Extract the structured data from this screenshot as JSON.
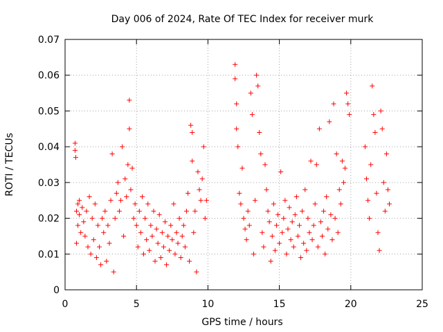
{
  "chart_data": {
    "type": "scatter",
    "title": "Day 006 of 2024, Rate Of TEC Index for receiver murk",
    "xlabel": "GPS time / hours",
    "ylabel": "ROTI / TECUs",
    "xlim": [
      0,
      25
    ],
    "ylim": [
      0,
      0.07
    ],
    "x_ticks": [
      0,
      5,
      10,
      15,
      20,
      25
    ],
    "x_tick_labels": [
      "0",
      "5",
      "10",
      "15",
      "20",
      "25"
    ],
    "y_ticks": [
      0,
      0.01,
      0.02,
      0.03,
      0.04,
      0.05,
      0.06,
      0.07
    ],
    "y_tick_labels": [
      "0",
      "0.01",
      "0.02",
      "0.03",
      "0.04",
      "0.05",
      "0.06",
      "0.07"
    ],
    "grid": true,
    "marker": "plus",
    "marker_color": "#ff0000",
    "series": [
      {
        "points": [
          [
            0.7,
            0.041
          ],
          [
            0.7,
            0.039
          ],
          [
            0.75,
            0.037
          ],
          [
            0.8,
            0.013
          ],
          [
            0.8,
            0.022
          ],
          [
            0.9,
            0.024
          ],
          [
            0.9,
            0.018
          ],
          [
            1.0,
            0.021
          ],
          [
            1.0,
            0.025
          ],
          [
            1.1,
            0.016
          ],
          [
            1.2,
            0.023
          ],
          [
            1.3,
            0.019
          ],
          [
            1.4,
            0.015
          ],
          [
            1.5,
            0.022
          ],
          [
            1.6,
            0.012
          ],
          [
            1.7,
            0.026
          ],
          [
            1.8,
            0.01
          ],
          [
            1.9,
            0.02
          ],
          [
            2.0,
            0.014
          ],
          [
            2.1,
            0.024
          ],
          [
            2.2,
            0.009
          ],
          [
            2.3,
            0.018
          ],
          [
            2.4,
            0.012
          ],
          [
            2.5,
            0.007
          ],
          [
            2.6,
            0.02
          ],
          [
            2.7,
            0.016
          ],
          [
            2.8,
            0.022
          ],
          [
            2.9,
            0.008
          ],
          [
            3.0,
            0.018
          ],
          [
            3.1,
            0.013
          ],
          [
            3.2,
            0.025
          ],
          [
            3.3,
            0.038
          ],
          [
            3.4,
            0.005
          ],
          [
            3.5,
            0.02
          ],
          [
            3.6,
            0.027
          ],
          [
            3.7,
            0.03
          ],
          [
            3.8,
            0.022
          ],
          [
            3.9,
            0.025
          ],
          [
            4.0,
            0.04
          ],
          [
            4.1,
            0.015
          ],
          [
            4.2,
            0.031
          ],
          [
            4.3,
            0.026
          ],
          [
            4.4,
            0.035
          ],
          [
            4.5,
            0.053
          ],
          [
            4.5,
            0.045
          ],
          [
            4.6,
            0.028
          ],
          [
            4.7,
            0.034
          ],
          [
            4.8,
            0.02
          ],
          [
            4.9,
            0.024
          ],
          [
            5.0,
            0.018
          ],
          [
            5.1,
            0.012
          ],
          [
            5.2,
            0.022
          ],
          [
            5.3,
            0.016
          ],
          [
            5.4,
            0.026
          ],
          [
            5.5,
            0.01
          ],
          [
            5.6,
            0.02
          ],
          [
            5.7,
            0.014
          ],
          [
            5.8,
            0.024
          ],
          [
            5.9,
            0.011
          ],
          [
            6.0,
            0.018
          ],
          [
            6.1,
            0.015
          ],
          [
            6.2,
            0.022
          ],
          [
            6.3,
            0.008
          ],
          [
            6.4,
            0.017
          ],
          [
            6.5,
            0.013
          ],
          [
            6.6,
            0.021
          ],
          [
            6.7,
            0.009
          ],
          [
            6.8,
            0.016
          ],
          [
            6.9,
            0.012
          ],
          [
            7.0,
            0.019
          ],
          [
            7.1,
            0.007
          ],
          [
            7.2,
            0.015
          ],
          [
            7.3,
            0.011
          ],
          [
            7.4,
            0.018
          ],
          [
            7.5,
            0.014
          ],
          [
            7.6,
            0.024
          ],
          [
            7.7,
            0.01
          ],
          [
            7.8,
            0.016
          ],
          [
            7.9,
            0.013
          ],
          [
            8.0,
            0.02
          ],
          [
            8.1,
            0.009
          ],
          [
            8.2,
            0.015
          ],
          [
            8.3,
            0.018
          ],
          [
            8.4,
            0.012
          ],
          [
            8.5,
            0.022
          ],
          [
            8.6,
            0.027
          ],
          [
            8.7,
            0.008
          ],
          [
            8.8,
            0.046
          ],
          [
            8.9,
            0.044
          ],
          [
            8.9,
            0.036
          ],
          [
            9.0,
            0.016
          ],
          [
            9.1,
            0.022
          ],
          [
            9.2,
            0.005
          ],
          [
            9.3,
            0.033
          ],
          [
            9.4,
            0.028
          ],
          [
            9.5,
            0.025
          ],
          [
            9.6,
            0.031
          ],
          [
            9.7,
            0.04
          ],
          [
            9.8,
            0.02
          ],
          [
            9.9,
            0.025
          ],
          [
            11.9,
            0.063
          ],
          [
            11.9,
            0.059
          ],
          [
            12.0,
            0.052
          ],
          [
            12.0,
            0.045
          ],
          [
            12.1,
            0.04
          ],
          [
            12.2,
            0.027
          ],
          [
            12.3,
            0.024
          ],
          [
            12.4,
            0.034
          ],
          [
            12.5,
            0.02
          ],
          [
            12.6,
            0.017
          ],
          [
            12.7,
            0.014
          ],
          [
            12.8,
            0.022
          ],
          [
            12.9,
            0.018
          ],
          [
            13.0,
            0.055
          ],
          [
            13.1,
            0.049
          ],
          [
            13.2,
            0.01
          ],
          [
            13.3,
            0.025
          ],
          [
            13.4,
            0.06
          ],
          [
            13.5,
            0.057
          ],
          [
            13.6,
            0.044
          ],
          [
            13.7,
            0.038
          ],
          [
            13.8,
            0.016
          ],
          [
            13.9,
            0.012
          ],
          [
            14.0,
            0.035
          ],
          [
            14.1,
            0.028
          ],
          [
            14.2,
            0.022
          ],
          [
            14.3,
            0.019
          ],
          [
            14.4,
            0.008
          ],
          [
            14.5,
            0.015
          ],
          [
            14.6,
            0.024
          ],
          [
            14.7,
            0.011
          ],
          [
            14.8,
            0.018
          ],
          [
            14.9,
            0.021
          ],
          [
            15.0,
            0.013
          ],
          [
            15.1,
            0.033
          ],
          [
            15.2,
            0.016
          ],
          [
            15.3,
            0.02
          ],
          [
            15.4,
            0.025
          ],
          [
            15.5,
            0.01
          ],
          [
            15.6,
            0.017
          ],
          [
            15.7,
            0.023
          ],
          [
            15.8,
            0.014
          ],
          [
            15.9,
            0.019
          ],
          [
            16.0,
            0.012
          ],
          [
            16.1,
            0.021
          ],
          [
            16.2,
            0.026
          ],
          [
            16.3,
            0.015
          ],
          [
            16.4,
            0.018
          ],
          [
            16.5,
            0.009
          ],
          [
            16.6,
            0.022
          ],
          [
            16.7,
            0.013
          ],
          [
            16.8,
            0.028
          ],
          [
            16.9,
            0.011
          ],
          [
            17.0,
            0.02
          ],
          [
            17.1,
            0.016
          ],
          [
            17.2,
            0.036
          ],
          [
            17.3,
            0.014
          ],
          [
            17.4,
            0.018
          ],
          [
            17.5,
            0.024
          ],
          [
            17.6,
            0.035
          ],
          [
            17.7,
            0.012
          ],
          [
            17.8,
            0.045
          ],
          [
            17.9,
            0.019
          ],
          [
            18.0,
            0.015
          ],
          [
            18.1,
            0.022
          ],
          [
            18.2,
            0.01
          ],
          [
            18.3,
            0.026
          ],
          [
            18.4,
            0.017
          ],
          [
            18.5,
            0.047
          ],
          [
            18.6,
            0.021
          ],
          [
            18.7,
            0.014
          ],
          [
            18.8,
            0.052
          ],
          [
            18.9,
            0.02
          ],
          [
            19.0,
            0.038
          ],
          [
            19.1,
            0.016
          ],
          [
            19.2,
            0.028
          ],
          [
            19.3,
            0.024
          ],
          [
            19.4,
            0.036
          ],
          [
            19.5,
            0.03
          ],
          [
            19.6,
            0.034
          ],
          [
            19.7,
            0.055
          ],
          [
            19.8,
            0.052
          ],
          [
            19.9,
            0.049
          ],
          [
            21.0,
            0.04
          ],
          [
            21.1,
            0.031
          ],
          [
            21.2,
            0.025
          ],
          [
            21.3,
            0.02
          ],
          [
            21.4,
            0.035
          ],
          [
            21.5,
            0.057
          ],
          [
            21.6,
            0.049
          ],
          [
            21.7,
            0.044
          ],
          [
            21.8,
            0.027
          ],
          [
            21.9,
            0.016
          ],
          [
            22.0,
            0.011
          ],
          [
            22.1,
            0.05
          ],
          [
            22.2,
            0.045
          ],
          [
            22.3,
            0.03
          ],
          [
            22.4,
            0.022
          ],
          [
            22.5,
            0.038
          ],
          [
            22.6,
            0.028
          ],
          [
            22.7,
            0.024
          ]
        ]
      }
    ]
  }
}
